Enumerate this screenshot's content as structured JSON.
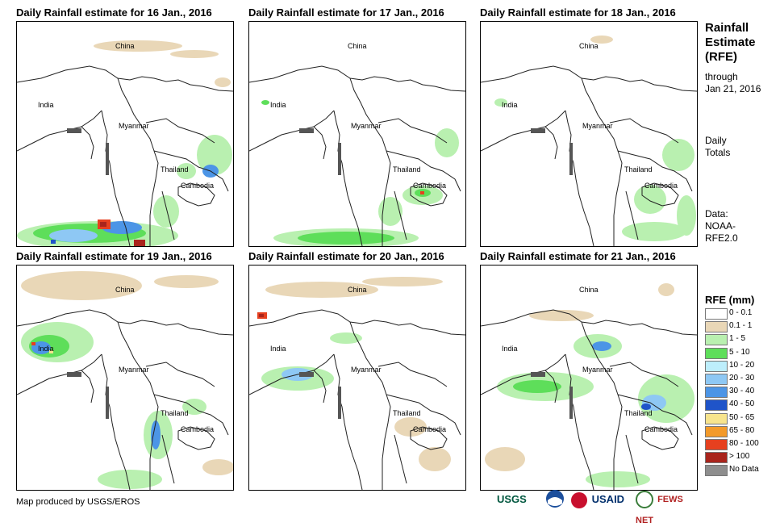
{
  "sidebar": {
    "title_lines": [
      "Rainfall",
      "Estimate",
      "(RFE)"
    ],
    "through_label": "through",
    "through_date": "Jan 21, 2016",
    "daily_lines": [
      "Daily",
      "Totals"
    ],
    "data_lines": [
      "Data:",
      "NOAA-",
      "RFE2.0"
    ]
  },
  "legend": {
    "title": "RFE (mm)",
    "items": [
      {
        "label": "0 - 0.1",
        "color": "#ffffff"
      },
      {
        "label": "0.1 - 1",
        "color": "#e9d7b7"
      },
      {
        "label": "1 - 5",
        "color": "#b9f0b0"
      },
      {
        "label": "5 - 10",
        "color": "#5ede5a"
      },
      {
        "label": "10 - 20",
        "color": "#bdeefc"
      },
      {
        "label": "20 - 30",
        "color": "#8ec8f4"
      },
      {
        "label": "30 - 40",
        "color": "#4c95e6"
      },
      {
        "label": "40 - 50",
        "color": "#1f54c9"
      },
      {
        "label": "50 - 65",
        "color": "#f7e48d"
      },
      {
        "label": "65 - 80",
        "color": "#f39a2a"
      },
      {
        "label": "80 - 100",
        "color": "#e6401f"
      },
      {
        "label": "> 100",
        "color": "#a9241c"
      },
      {
        "label": "No Data",
        "color": "#8e8e8e"
      }
    ]
  },
  "panels": [
    {
      "title": "Daily Rainfall estimate for 16 Jan., 2016",
      "date": "16 Jan., 2016"
    },
    {
      "title": "Daily Rainfall estimate for 17 Jan., 2016",
      "date": "17 Jan., 2016"
    },
    {
      "title": "Daily Rainfall estimate for 18 Jan., 2016",
      "date": "18 Jan., 2016"
    },
    {
      "title": "Daily Rainfall estimate for 19 Jan., 2016",
      "date": "19 Jan., 2016"
    },
    {
      "title": "Daily Rainfall estimate for 20 Jan., 2016",
      "date": "20 Jan., 2016"
    },
    {
      "title": "Daily Rainfall estimate for 21 Jan., 2016",
      "date": "21 Jan., 2016"
    }
  ],
  "map_labels": {
    "china": "China",
    "india": "India",
    "myanmar": "Myanmar",
    "thailand": "Thailand",
    "cambodia": "Cambodia"
  },
  "footer": {
    "credit": "Map produced by USGS/EROS",
    "logos": [
      "USGS",
      "NOAA",
      "USAID",
      "FEWS NET"
    ]
  }
}
